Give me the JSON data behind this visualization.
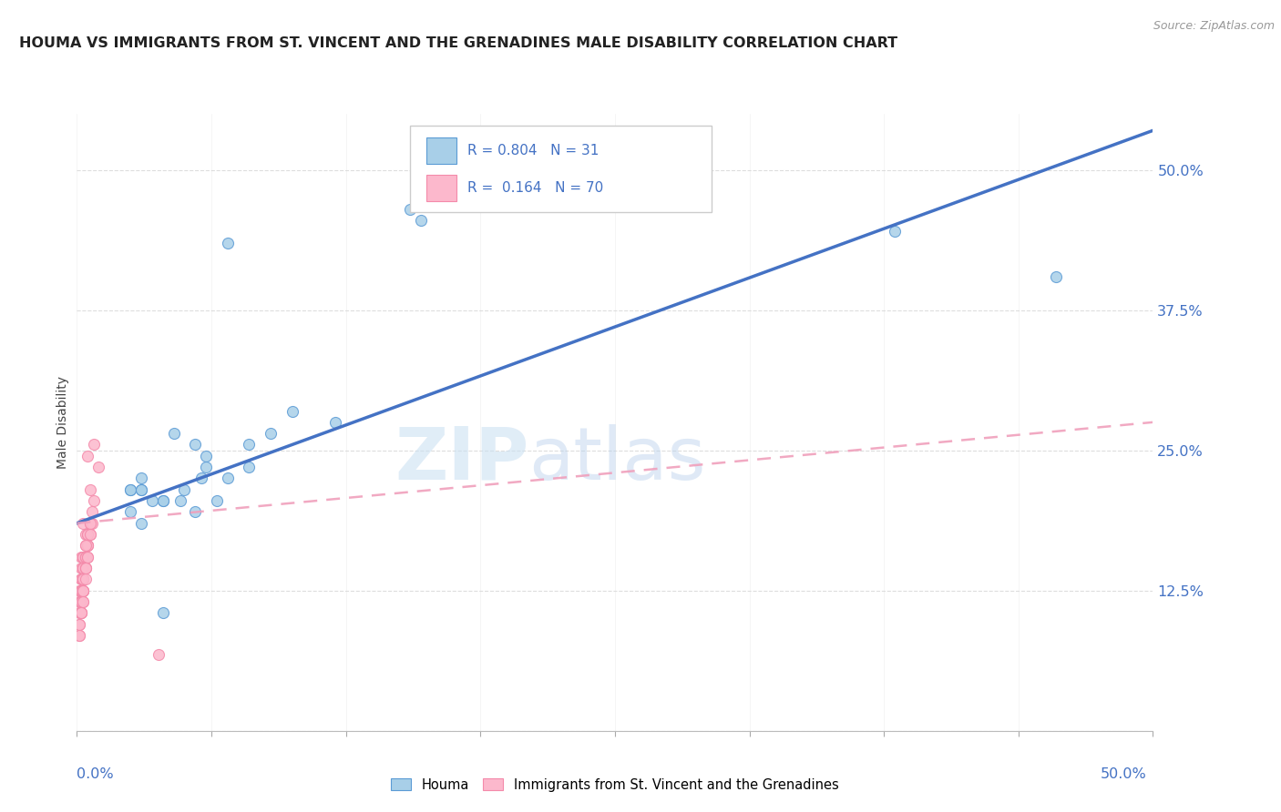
{
  "title": "HOUMA VS IMMIGRANTS FROM ST. VINCENT AND THE GRENADINES MALE DISABILITY CORRELATION CHART",
  "source": "Source: ZipAtlas.com",
  "ylabel": "Male Disability",
  "y_ticks": [
    0.0,
    0.125,
    0.25,
    0.375,
    0.5
  ],
  "y_tick_labels": [
    "",
    "12.5%",
    "25.0%",
    "37.5%",
    "50.0%"
  ],
  "xlim": [
    0.0,
    0.5
  ],
  "ylim": [
    0.0,
    0.55
  ],
  "background_color": "#ffffff",
  "watermark_zip": "ZIP",
  "watermark_atlas": "atlas",
  "blue_color": "#a8cfe8",
  "pink_color": "#fcb8cc",
  "blue_edge_color": "#5b9bd5",
  "pink_edge_color": "#f48aaa",
  "blue_line_color": "#4472c4",
  "pink_line_color": "#f0a0bc",
  "houma_x": [
    0.025,
    0.07,
    0.1,
    0.155,
    0.03,
    0.04,
    0.055,
    0.06,
    0.08,
    0.09,
    0.03,
    0.05,
    0.07,
    0.04,
    0.06,
    0.025,
    0.035,
    0.08,
    0.12,
    0.16,
    0.045,
    0.055,
    0.03,
    0.025,
    0.065,
    0.058,
    0.048,
    0.38,
    0.455,
    0.04,
    0.03
  ],
  "houma_y": [
    0.215,
    0.435,
    0.285,
    0.465,
    0.225,
    0.205,
    0.195,
    0.245,
    0.235,
    0.265,
    0.185,
    0.215,
    0.225,
    0.205,
    0.235,
    0.195,
    0.205,
    0.255,
    0.275,
    0.455,
    0.265,
    0.255,
    0.215,
    0.215,
    0.205,
    0.225,
    0.205,
    0.445,
    0.405,
    0.105,
    0.215
  ],
  "pink_x": [
    0.005,
    0.008,
    0.006,
    0.003,
    0.002,
    0.006,
    0.004,
    0.01,
    0.007,
    0.008,
    0.003,
    0.005,
    0.002,
    0.007,
    0.005,
    0.004,
    0.003,
    0.006,
    0.002,
    0.001,
    0.003,
    0.004,
    0.006,
    0.005,
    0.003,
    0.002,
    0.004,
    0.003,
    0.005,
    0.002,
    0.004,
    0.003,
    0.005,
    0.002,
    0.003,
    0.001,
    0.004,
    0.002,
    0.003,
    0.004,
    0.002,
    0.001,
    0.003,
    0.004,
    0.002,
    0.003,
    0.001,
    0.004,
    0.003,
    0.005,
    0.002,
    0.003,
    0.001,
    0.002,
    0.003,
    0.004,
    0.005,
    0.002,
    0.003,
    0.001,
    0.006,
    0.002,
    0.003,
    0.004,
    0.002,
    0.003,
    0.001,
    0.002,
    0.003,
    0.038
  ],
  "pink_y": [
    0.245,
    0.255,
    0.215,
    0.185,
    0.155,
    0.185,
    0.175,
    0.235,
    0.195,
    0.205,
    0.155,
    0.175,
    0.145,
    0.185,
    0.165,
    0.155,
    0.145,
    0.175,
    0.135,
    0.125,
    0.155,
    0.165,
    0.185,
    0.175,
    0.155,
    0.125,
    0.155,
    0.145,
    0.165,
    0.135,
    0.155,
    0.135,
    0.165,
    0.125,
    0.145,
    0.115,
    0.155,
    0.125,
    0.135,
    0.165,
    0.115,
    0.105,
    0.135,
    0.145,
    0.115,
    0.125,
    0.095,
    0.145,
    0.125,
    0.155,
    0.115,
    0.135,
    0.085,
    0.105,
    0.125,
    0.145,
    0.155,
    0.105,
    0.125,
    0.095,
    0.175,
    0.115,
    0.125,
    0.135,
    0.105,
    0.115,
    0.085,
    0.105,
    0.115,
    0.068
  ],
  "blue_line_x": [
    0.0,
    0.5
  ],
  "blue_line_y": [
    0.185,
    0.535
  ],
  "pink_line_x": [
    0.0,
    0.5
  ],
  "pink_line_y": [
    0.185,
    0.275
  ]
}
